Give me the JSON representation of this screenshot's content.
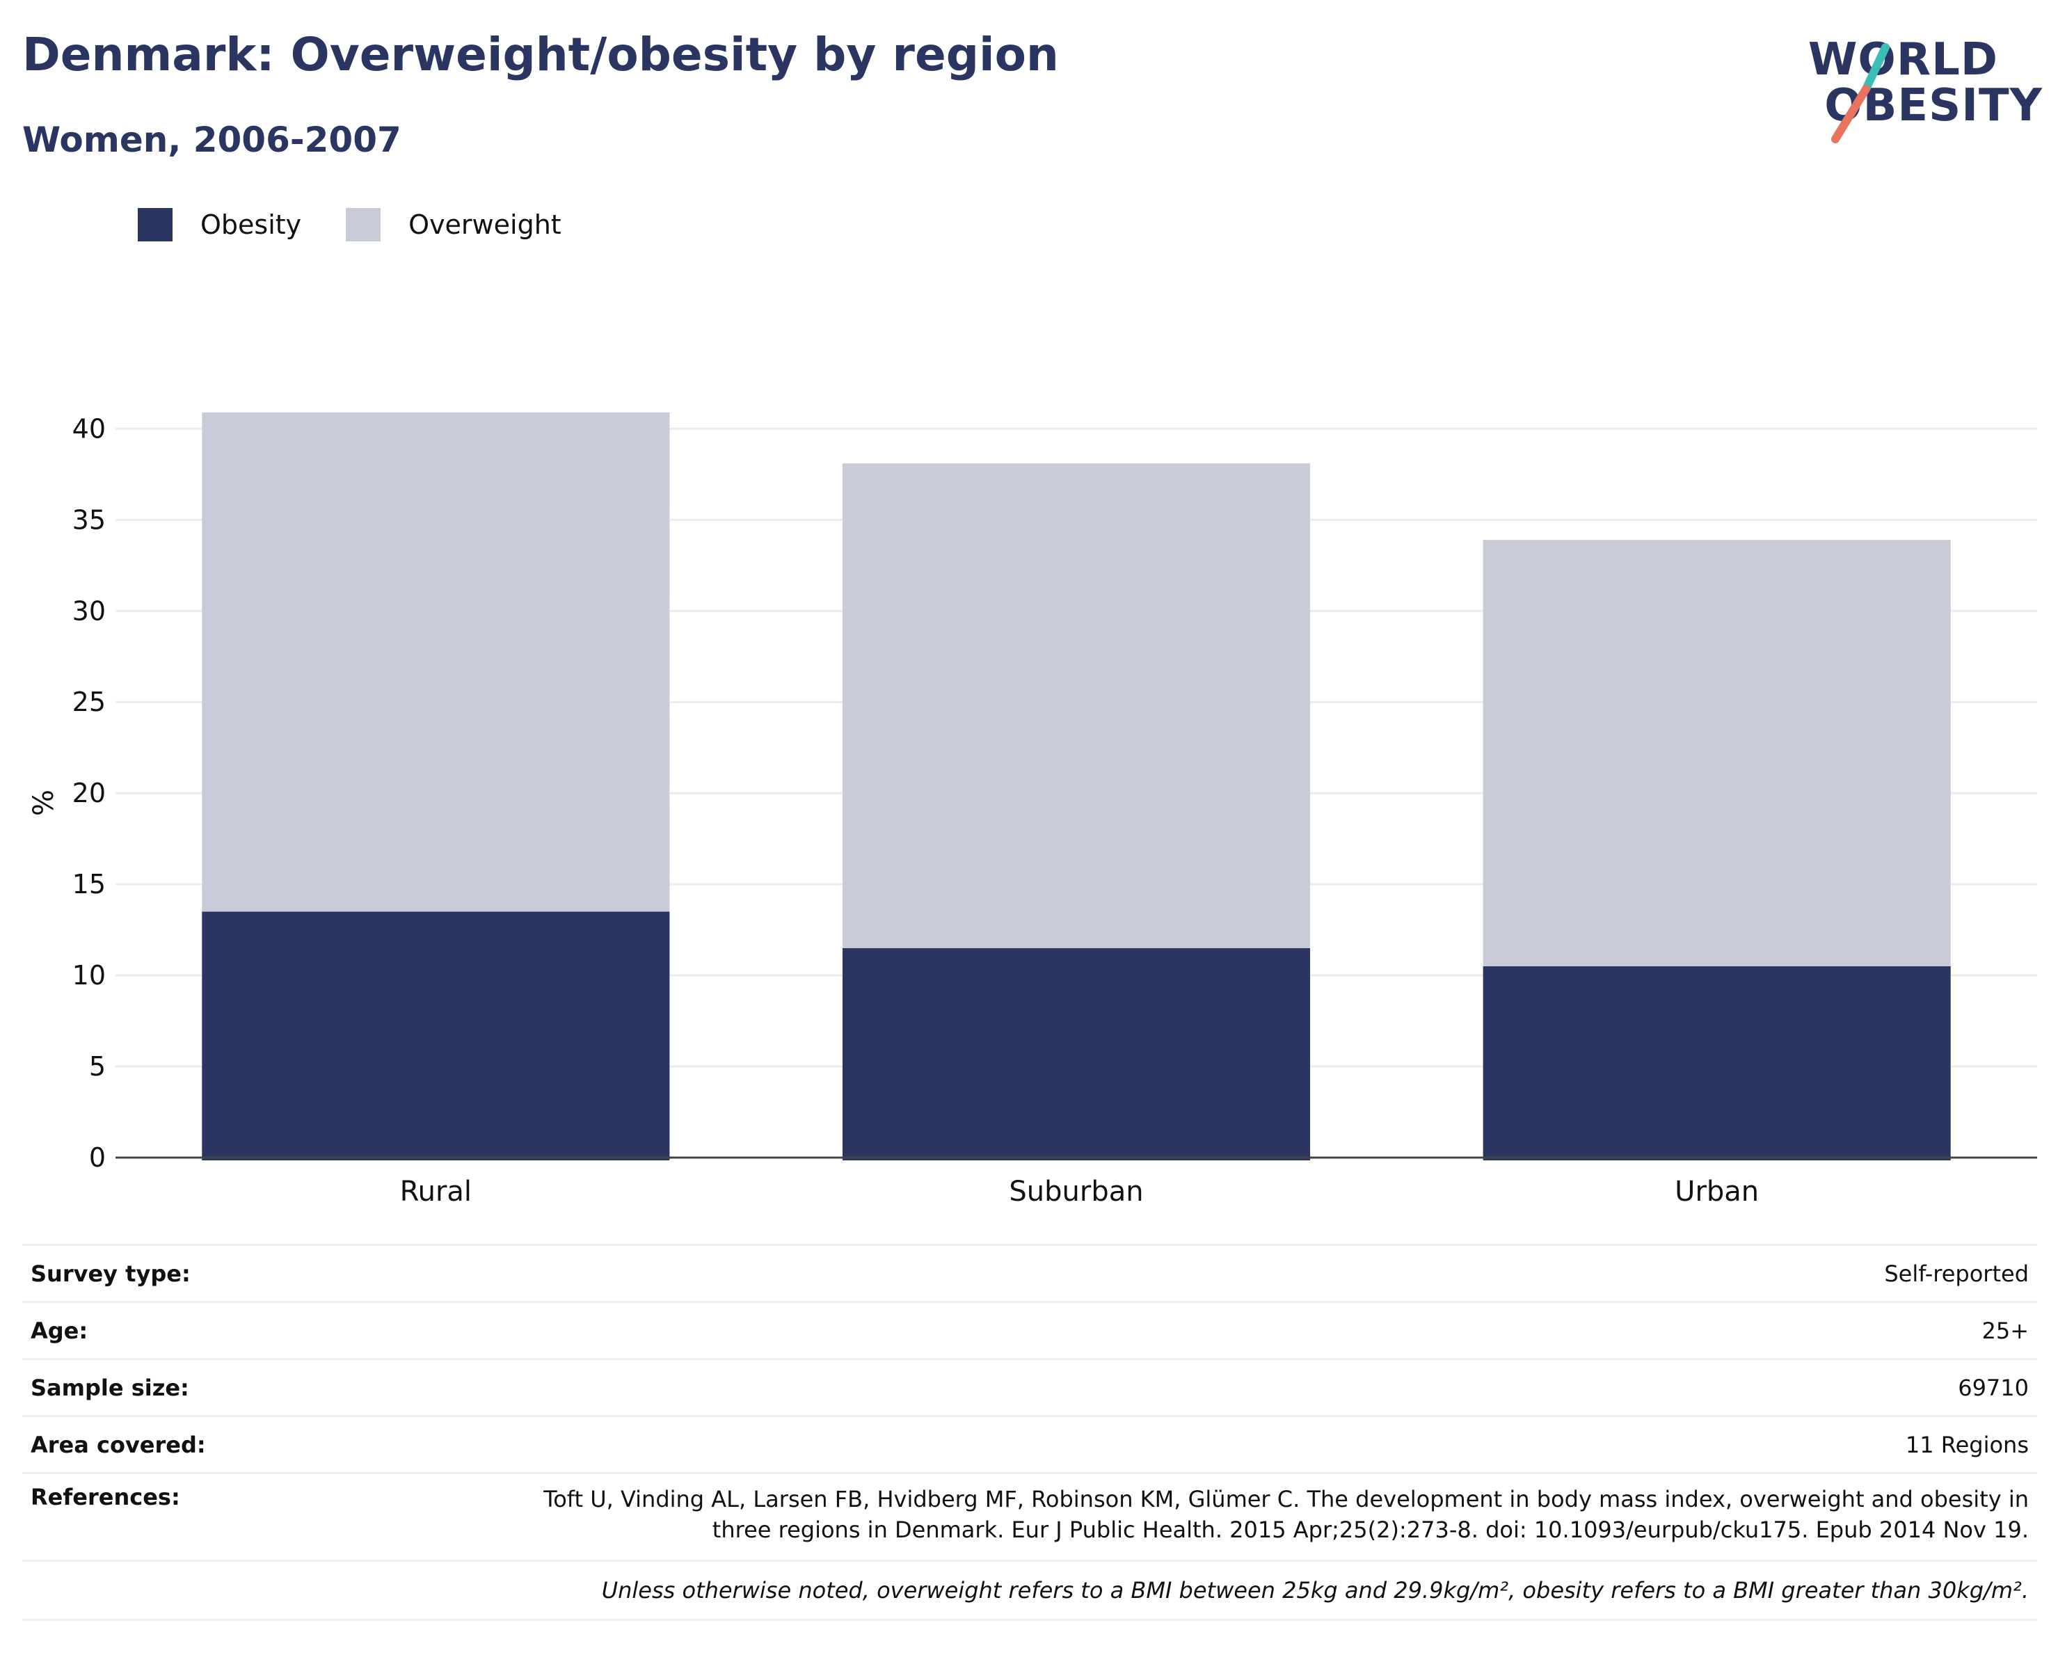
{
  "header": {
    "title": "Denmark: Overweight/obesity by region",
    "subtitle": "Women, 2006-2007"
  },
  "logo": {
    "line1": "WORLD",
    "line2": "OBESITY"
  },
  "colors": {
    "obesity": "#2a3562",
    "overweight": "#c9ccd8",
    "brand_text": "#2a3562",
    "logo_teal": "#3dbdb8",
    "logo_coral": "#e8735f"
  },
  "chart_data": {
    "type": "bar",
    "stacked": true,
    "categories": [
      "Rural",
      "Suburban",
      "Urban"
    ],
    "series": [
      {
        "name": "Obesity",
        "values": [
          13.5,
          11.5,
          10.5
        ]
      },
      {
        "name": "Overweight",
        "values": [
          27.4,
          26.6,
          23.4
        ]
      }
    ],
    "xlabel": "",
    "ylabel": "%",
    "ylim": [
      0,
      42
    ],
    "yticks": [
      0,
      5,
      10,
      15,
      20,
      25,
      30,
      35,
      40
    ],
    "grid": true,
    "legend": "top-left"
  },
  "meta": {
    "rows": [
      {
        "label": "Survey type:",
        "value": "Self-reported"
      },
      {
        "label": "Age:",
        "value": "25+"
      },
      {
        "label": "Sample size:",
        "value": "69710"
      },
      {
        "label": "Area covered:",
        "value": "11 Regions"
      }
    ],
    "references": {
      "label": "References:",
      "line1": "Toft U, Vinding AL, Larsen FB, Hvidberg MF, Robinson KM, Glümer C. The development in body mass index, overweight and obesity in",
      "line2": "three regions in Denmark. Eur J Public Health. 2015 Apr;25(2):273-8. doi: 10.1093/eurpub/cku175. Epub 2014 Nov 19."
    },
    "note": "Unless otherwise noted, overweight refers to a BMI between 25kg and 29.9kg/m², obesity refers to a BMI greater than 30kg/m²."
  }
}
